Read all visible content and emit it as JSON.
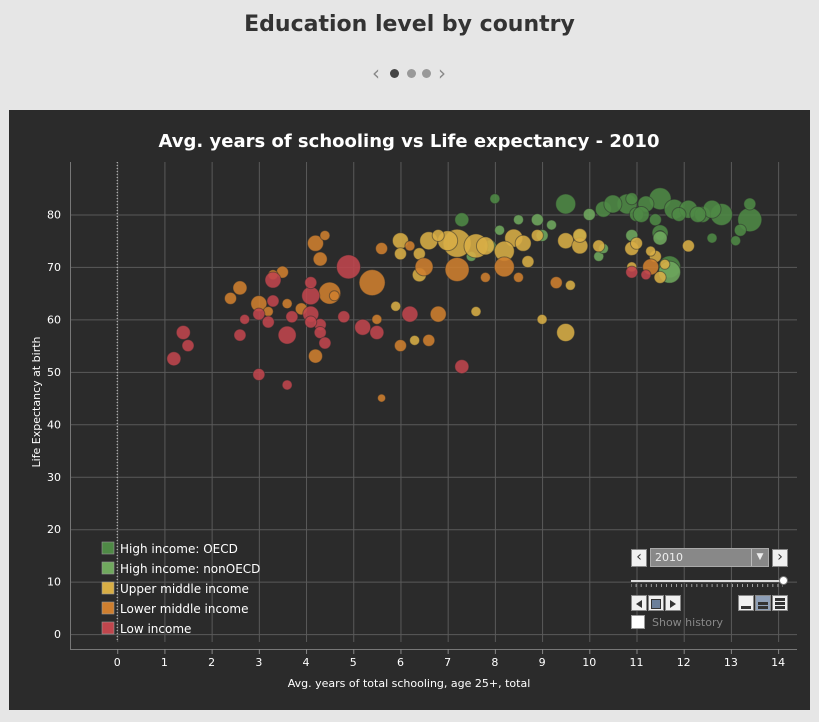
{
  "page": {
    "title": "Education level by country"
  },
  "pager": {
    "prev_icon": "‹",
    "next_icon": "›",
    "dots": 3,
    "active": 0
  },
  "controls": {
    "year": "2010",
    "prev_icon": "‹",
    "next_icon": "›",
    "dropdown_icon": "▼",
    "show_history": "Show history",
    "slider_value": 2010,
    "slider_range": [
      1950,
      2010
    ]
  },
  "chart_data": {
    "type": "scatter",
    "title": "Avg. years of schooling vs Life expectancy - 2010",
    "xlabel": "Avg. years of total schooling, age 25+, total",
    "ylabel": "Life Expectancy at birth",
    "xlim": [
      -1,
      14.4
    ],
    "ylim": [
      -1.5,
      90
    ],
    "xticks": [
      0,
      1,
      2,
      3,
      4,
      5,
      6,
      7,
      8,
      9,
      10,
      11,
      12,
      13,
      14
    ],
    "yticks": [
      0,
      10,
      20,
      30,
      40,
      50,
      60,
      70,
      80
    ],
    "grid": true,
    "reference_line_x": 0,
    "legend_position": "bottom-left",
    "series": [
      {
        "name": "High income: OECD",
        "color": "#4f8a46",
        "points": [
          [
            11.5,
            83,
            11
          ],
          [
            9.5,
            82,
            10
          ],
          [
            10.3,
            81,
            8
          ],
          [
            10.8,
            82,
            10
          ],
          [
            11.2,
            82,
            8
          ],
          [
            11.8,
            81,
            10
          ],
          [
            12.1,
            81,
            9
          ],
          [
            12.4,
            80,
            8
          ],
          [
            12.8,
            80,
            11
          ],
          [
            13.4,
            79,
            12
          ],
          [
            12.6,
            81,
            9
          ],
          [
            11.0,
            80,
            7
          ],
          [
            11.4,
            79,
            6
          ],
          [
            11.9,
            80,
            7
          ],
          [
            12.3,
            80,
            8
          ],
          [
            13.2,
            77,
            6
          ],
          [
            13.1,
            75,
            5
          ],
          [
            12.6,
            75.5,
            5
          ],
          [
            11.5,
            76.5,
            8
          ],
          [
            11.5,
            76,
            5
          ],
          [
            11.1,
            80,
            8
          ],
          [
            10.5,
            82,
            9
          ],
          [
            10.9,
            83,
            6
          ],
          [
            7.3,
            79,
            7
          ],
          [
            8.0,
            83,
            5
          ],
          [
            11.7,
            70,
            11
          ],
          [
            13.4,
            82,
            6
          ]
        ]
      },
      {
        "name": "High income: nonOECD",
        "color": "#70a95e",
        "points": [
          [
            11.5,
            75.5,
            7
          ],
          [
            10.9,
            76,
            6
          ],
          [
            9.8,
            76,
            6
          ],
          [
            10.0,
            80,
            6
          ],
          [
            8.9,
            79,
            6
          ],
          [
            8.5,
            79,
            5
          ],
          [
            9.2,
            78,
            5
          ],
          [
            10.2,
            72,
            5
          ],
          [
            10.3,
            73.5,
            5
          ],
          [
            8.1,
            77,
            5
          ],
          [
            11.7,
            69,
            11
          ],
          [
            9.0,
            76,
            6
          ],
          [
            7.9,
            74,
            6
          ],
          [
            7.5,
            72,
            5
          ]
        ]
      },
      {
        "name": "Upper middle income",
        "color": "#d8ae45",
        "points": [
          [
            7.2,
            74.5,
            14
          ],
          [
            7.6,
            74,
            12
          ],
          [
            7.0,
            75,
            10
          ],
          [
            7.8,
            74,
            9
          ],
          [
            8.4,
            75.5,
            9
          ],
          [
            8.2,
            73,
            10
          ],
          [
            8.6,
            74.5,
            8
          ],
          [
            9.5,
            75,
            8
          ],
          [
            9.8,
            74,
            8
          ],
          [
            9.8,
            76,
            7
          ],
          [
            10.2,
            74,
            6
          ],
          [
            10.9,
            73.5,
            7
          ],
          [
            11.4,
            72,
            6
          ],
          [
            12.1,
            74,
            6
          ],
          [
            11.0,
            74.5,
            6
          ],
          [
            11.3,
            73,
            5
          ],
          [
            6.6,
            75,
            9
          ],
          [
            6.0,
            75,
            8
          ],
          [
            6.4,
            72.5,
            6
          ],
          [
            6.8,
            76,
            6
          ],
          [
            8.9,
            76,
            6
          ],
          [
            8.7,
            71,
            6
          ],
          [
            9.5,
            57.5,
            9
          ],
          [
            9.6,
            66.5,
            5
          ],
          [
            9.0,
            60,
            5
          ],
          [
            7.6,
            61.5,
            5
          ],
          [
            6.4,
            68.5,
            7
          ],
          [
            6.0,
            72.5,
            6
          ],
          [
            5.9,
            62.5,
            5
          ],
          [
            6.3,
            56,
            5
          ],
          [
            10.9,
            70,
            5
          ],
          [
            11.5,
            68,
            6
          ],
          [
            11.6,
            70.5,
            5
          ]
        ]
      },
      {
        "name": "Lower middle income",
        "color": "#cf7f2f",
        "points": [
          [
            5.4,
            67,
            13
          ],
          [
            4.5,
            65,
            11
          ],
          [
            7.2,
            69.5,
            12
          ],
          [
            8.2,
            70,
            10
          ],
          [
            6.5,
            70,
            9
          ],
          [
            5.6,
            73.5,
            6
          ],
          [
            4.2,
            74.5,
            8
          ],
          [
            4.4,
            76,
            5
          ],
          [
            4.3,
            71.5,
            7
          ],
          [
            3.5,
            69,
            6
          ],
          [
            3.3,
            68.5,
            5
          ],
          [
            3.0,
            63,
            8
          ],
          [
            2.6,
            66,
            7
          ],
          [
            2.4,
            64,
            6
          ],
          [
            3.9,
            62,
            6
          ],
          [
            4.6,
            64.5,
            5
          ],
          [
            6.8,
            61,
            8
          ],
          [
            5.5,
            60,
            5
          ],
          [
            6.0,
            55,
            6
          ],
          [
            6.6,
            56,
            6
          ],
          [
            4.2,
            53,
            7
          ],
          [
            5.6,
            45,
            4
          ],
          [
            7.8,
            68,
            5
          ],
          [
            8.5,
            68,
            5
          ],
          [
            9.3,
            67,
            6
          ],
          [
            11.3,
            70,
            8
          ],
          [
            3.2,
            61.5,
            5
          ],
          [
            3.6,
            63,
            5
          ],
          [
            6.2,
            74,
            5
          ]
        ]
      },
      {
        "name": "Low income",
        "color": "#c0464d",
        "points": [
          [
            4.9,
            70,
            12
          ],
          [
            3.3,
            67.5,
            8
          ],
          [
            4.1,
            64.5,
            9
          ],
          [
            4.1,
            61,
            8
          ],
          [
            3.7,
            60.5,
            6
          ],
          [
            3.0,
            61,
            6
          ],
          [
            3.6,
            57,
            9
          ],
          [
            5.2,
            58.5,
            8
          ],
          [
            5.5,
            57.5,
            7
          ],
          [
            4.3,
            59,
            6
          ],
          [
            4.3,
            57.5,
            6
          ],
          [
            4.4,
            55.5,
            6
          ],
          [
            4.1,
            67,
            6
          ],
          [
            2.7,
            60,
            5
          ],
          [
            2.6,
            57,
            6
          ],
          [
            3.2,
            59.5,
            6
          ],
          [
            3.3,
            63.5,
            6
          ],
          [
            6.2,
            61,
            8
          ],
          [
            7.3,
            51,
            7
          ],
          [
            1.4,
            57.5,
            7
          ],
          [
            1.5,
            55,
            6
          ],
          [
            1.2,
            52.5,
            7
          ],
          [
            3.0,
            49.5,
            6
          ],
          [
            3.6,
            47.5,
            5
          ],
          [
            4.1,
            59.5,
            6
          ],
          [
            4.8,
            60.5,
            6
          ],
          [
            10.9,
            69,
            6
          ],
          [
            11.2,
            68.5,
            5
          ]
        ]
      }
    ]
  }
}
